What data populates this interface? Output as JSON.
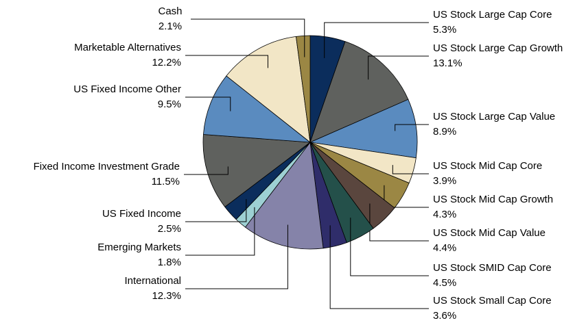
{
  "chart_data": {
    "type": "pie",
    "categories": [
      "US Stock Large Cap Core",
      "US Stock Large Cap Growth",
      "US Stock Large Cap Value",
      "US Stock Mid Cap Core",
      "US Stock Mid Cap Growth",
      "US Stock Mid Cap Value",
      "US Stock SMID Cap Core",
      "US Stock Small Cap Core",
      "International",
      "Emerging Markets",
      "US Fixed Income",
      "Fixed Income Investment Grade",
      "US Fixed Income Other",
      "Marketable Alternatives",
      "Cash"
    ],
    "values": [
      5.3,
      13.1,
      8.9,
      3.9,
      4.3,
      4.4,
      4.5,
      3.6,
      12.3,
      1.8,
      2.5,
      11.5,
      9.5,
      12.2,
      2.1
    ],
    "value_labels": [
      "5.3%",
      "13.1%",
      "8.9%",
      "3.9%",
      "4.3%",
      "4.4%",
      "4.5%",
      "3.6%",
      "12.3%",
      "1.8%",
      "2.5%",
      "11.5%",
      "9.5%",
      "12.2%",
      "2.1%"
    ],
    "colors": [
      "#0b2d5c",
      "#5f615e",
      "#5a8bbf",
      "#f2e6c6",
      "#9b8744",
      "#5a463e",
      "#24504a",
      "#2f2d6a",
      "#8583a9",
      "#9dd0d3",
      "#0b2d5c",
      "#5f615e",
      "#5a8bbf",
      "#f2e6c6",
      "#9b8744"
    ]
  }
}
